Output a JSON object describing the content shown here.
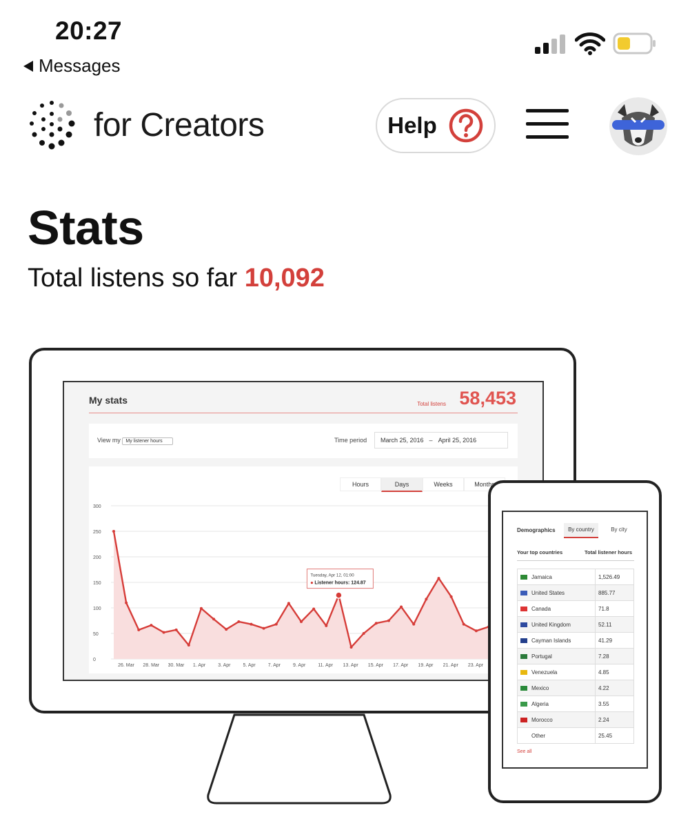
{
  "status_bar": {
    "time": "20:27",
    "back_label": "Messages"
  },
  "header": {
    "brand": "for Creators",
    "help_label": "Help"
  },
  "page": {
    "title": "Stats",
    "subtitle_prefix": "Total listens so far",
    "total_listens": "10,092"
  },
  "colors": {
    "accent": "#d3403b"
  },
  "icons": [
    "signal-icon",
    "wifi-icon",
    "battery-icon",
    "dots-logo-icon",
    "question-icon",
    "hamburger-icon"
  ],
  "illustration": {
    "desktop": {
      "title": "My stats",
      "total_label": "Total listens",
      "total_value": "58,453",
      "view_label": "View my",
      "view_select": "My listener hours",
      "period_label": "Time period",
      "date_from": "March 25, 2016",
      "date_sep": "–",
      "date_to": "April 25, 2016",
      "tabs": [
        "Hours",
        "Days",
        "Weeks",
        "Months"
      ],
      "active_tab": "Days",
      "tooltip_title": "Tuesday, Apr 12, 01:00",
      "tooltip_label": "Listener hours: 124.87"
    },
    "phone": {
      "tab_demographics": "Demographics",
      "tab_country": "By country",
      "tab_city": "By city",
      "col_countries": "Your top countries",
      "col_hours": "Total listener hours",
      "see_all": "See all",
      "rows": [
        {
          "country": "Jamaica",
          "hours": "1,526.49"
        },
        {
          "country": "United States",
          "hours": "885.77"
        },
        {
          "country": "Canada",
          "hours": "71.8"
        },
        {
          "country": "United Kingdom",
          "hours": "52.11"
        },
        {
          "country": "Cayman Islands",
          "hours": "41.29"
        },
        {
          "country": "Portugal",
          "hours": "7.28"
        },
        {
          "country": "Venezuela",
          "hours": "4.85"
        },
        {
          "country": "Mexico",
          "hours": "4.22"
        },
        {
          "country": "Algeria",
          "hours": "3.55"
        },
        {
          "country": "Morocco",
          "hours": "2.24"
        },
        {
          "country": "Other",
          "hours": "25.45"
        }
      ]
    }
  },
  "chart_data": {
    "type": "area",
    "ylim": [
      0,
      300
    ],
    "yticks": [
      "0",
      "50",
      "100",
      "150",
      "200",
      "250",
      "300"
    ],
    "xtick_labels": [
      "26. Mar",
      "28. Mar",
      "30. Mar",
      "1. Apr",
      "3. Apr",
      "5. Apr",
      "7. Apr",
      "9. Apr",
      "11. Apr",
      "13. Apr",
      "15. Apr",
      "17. Apr",
      "19. Apr",
      "21. Apr",
      "23. Apr"
    ],
    "values": [
      250,
      110,
      57,
      66,
      52,
      57,
      27,
      99,
      78,
      58,
      73,
      68,
      60,
      68,
      109,
      73,
      98,
      65,
      124.87,
      23,
      50,
      70,
      75,
      102,
      68,
      117,
      158,
      122,
      68,
      55,
      63
    ]
  }
}
